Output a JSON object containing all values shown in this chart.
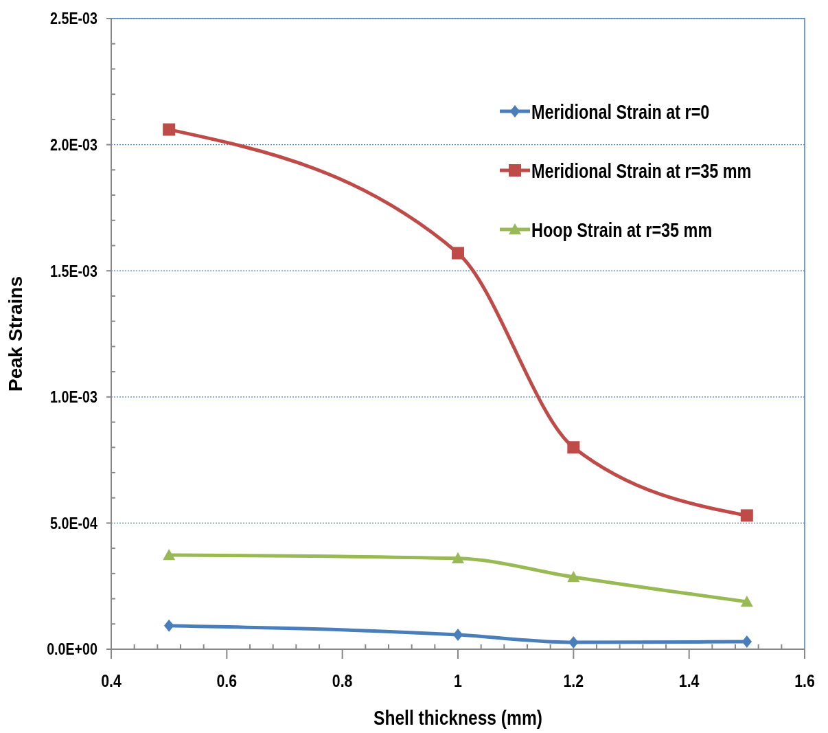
{
  "chart_data": {
    "type": "line",
    "xlabel": "Shell thickness (mm)",
    "ylabel": "Peak Strains",
    "x": [
      0.5,
      1,
      1.2,
      1.5
    ],
    "series": [
      {
        "name": "Meridional Strain at r=0",
        "color": "#4a7ebb",
        "marker": "diamond",
        "values": [
          9.3e-05,
          5.7e-05,
          2.7e-05,
          3e-05
        ]
      },
      {
        "name": "Meridional Strain at r=35 mm",
        "color": "#be4b48",
        "marker": "square",
        "values": [
          0.00206,
          0.00157,
          0.0008,
          0.00053
        ]
      },
      {
        "name": "Hoop Strain at r=35 mm",
        "color": "#98b954",
        "marker": "triangle",
        "values": [
          0.000373,
          0.00036,
          0.000286,
          0.000188
        ]
      }
    ],
    "xlim": [
      0.4,
      1.6
    ],
    "xticks": [
      0.4,
      {
        "value": 0.44,
        "label": null
      },
      {
        "value": 0.48,
        "label": null
      },
      {
        "value": 0.52,
        "label": null
      },
      {
        "value": 0.56,
        "label": null
      },
      0.6,
      {
        "value": 0.64,
        "label": null
      },
      {
        "value": 0.68,
        "label": null
      },
      {
        "value": 0.72,
        "label": null
      },
      {
        "value": 0.76,
        "label": null
      },
      0.8,
      {
        "value": 0.84,
        "label": null
      },
      {
        "value": 0.88,
        "label": null
      },
      {
        "value": 0.92,
        "label": null
      },
      {
        "value": 0.96,
        "label": null
      },
      1,
      {
        "value": 1.04,
        "label": null
      },
      {
        "value": 1.08,
        "label": null
      },
      {
        "value": 1.12,
        "label": null
      },
      {
        "value": 1.16,
        "label": null
      },
      1.2,
      {
        "value": 1.24,
        "label": null
      },
      {
        "value": 1.28,
        "label": null
      },
      {
        "value": 1.32,
        "label": null
      },
      {
        "value": 1.36,
        "label": null
      },
      1.4,
      {
        "value": 1.44,
        "label": null
      },
      {
        "value": 1.48,
        "label": null
      },
      {
        "value": 1.52,
        "label": null
      },
      {
        "value": 1.56,
        "label": null
      },
      1.6
    ],
    "ylim": [
      0,
      0.0025
    ],
    "yticks": [
      {
        "value": 0,
        "label": "0.0E+00"
      },
      {
        "value": 0.0001,
        "label": null
      },
      {
        "value": 0.0002,
        "label": null
      },
      {
        "value": 0.0003,
        "label": null
      },
      {
        "value": 0.0004,
        "label": null
      },
      {
        "value": 0.0005,
        "label": "5.0E-04"
      },
      {
        "value": 0.0006,
        "label": null
      },
      {
        "value": 0.0007,
        "label": null
      },
      {
        "value": 0.0008,
        "label": null
      },
      {
        "value": 0.0009,
        "label": null
      },
      {
        "value": 0.001,
        "label": "1.0E-03"
      },
      {
        "value": 0.0011,
        "label": null
      },
      {
        "value": 0.0012,
        "label": null
      },
      {
        "value": 0.0013,
        "label": null
      },
      {
        "value": 0.0014,
        "label": null
      },
      {
        "value": 0.0015,
        "label": "1.5E-03"
      },
      {
        "value": 0.0016,
        "label": null
      },
      {
        "value": 0.0017,
        "label": null
      },
      {
        "value": 0.0018,
        "label": null
      },
      {
        "value": 0.0019,
        "label": null
      },
      {
        "value": 0.002,
        "label": "2.0E-03"
      },
      {
        "value": 0.0021,
        "label": null
      },
      {
        "value": 0.0022,
        "label": null
      },
      {
        "value": 0.0023,
        "label": null
      },
      {
        "value": 0.0024,
        "label": null
      },
      {
        "value": 0.0025,
        "label": "2.5E-03"
      }
    ],
    "grid": "y",
    "legend": "top right",
    "line_style": "solid"
  }
}
